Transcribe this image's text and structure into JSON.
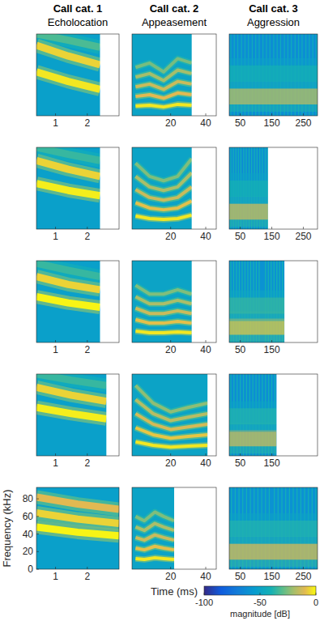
{
  "chart_data": [
    {
      "type": "spectrogram",
      "title": "Call cat. 1",
      "subtitle": "Echolocation",
      "xlim": [
        0.4,
        3.0
      ],
      "xticks": [
        1,
        2
      ],
      "ylim": [
        0,
        93
      ],
      "tick_labels": "x",
      "duration": 2.4,
      "background_db": -52,
      "series": [
        {
          "x": [
            0.4,
            1.4,
            2.4
          ],
          "values": [
            93,
            86,
            78
          ],
          "level_db": -32
        },
        {
          "x": [
            0.4,
            1.4,
            2.4
          ],
          "values": [
            80,
            68,
            58
          ],
          "level_db": -6
        },
        {
          "x": [
            0.4,
            1.4,
            2.4
          ],
          "values": [
            50,
            39,
            30
          ],
          "level_db": -3
        }
      ]
    },
    {
      "type": "spectrogram",
      "title": "Call cat. 2",
      "subtitle": "Appeasement",
      "xlim": [
        -2,
        46
      ],
      "xticks": [
        20,
        40
      ],
      "ylim": [
        0,
        93
      ],
      "tick_labels": "x",
      "duration": 32,
      "background_db": -50,
      "series": [
        {
          "x": [
            0,
            8,
            16,
            24,
            32
          ],
          "values": [
            11,
            12,
            10,
            13,
            12
          ],
          "level_db": -3
        },
        {
          "x": [
            0,
            8,
            16,
            24,
            32
          ],
          "values": [
            22,
            24,
            20,
            26,
            24
          ],
          "level_db": -10
        },
        {
          "x": [
            0,
            8,
            16,
            24,
            32
          ],
          "values": [
            33,
            36,
            30,
            39,
            36
          ],
          "level_db": -14
        },
        {
          "x": [
            0,
            8,
            16,
            24,
            32
          ],
          "values": [
            44,
            48,
            40,
            52,
            48
          ],
          "level_db": -20
        },
        {
          "x": [
            0,
            8,
            16,
            24,
            32
          ],
          "values": [
            55,
            60,
            50,
            65,
            60
          ],
          "level_db": -26
        }
      ]
    },
    {
      "type": "spectrogram",
      "title": "Call cat. 3",
      "subtitle": "Aggression",
      "xlim": [
        15,
        295
      ],
      "xticks": [
        50,
        150,
        250
      ],
      "ylim": [
        0,
        93
      ],
      "tick_labels": "x",
      "duration": 295,
      "background_db": -62,
      "pulse_db": -45,
      "pulses": [
        20,
        31,
        42,
        54,
        65,
        76,
        88,
        99,
        110,
        122,
        133,
        144,
        156,
        167,
        178,
        190,
        201,
        212,
        224,
        235,
        246,
        258,
        269,
        280,
        291
      ],
      "series": [
        {
          "x": [
            15,
            295
          ],
          "values": [
            22,
            22
          ],
          "level_db": -15
        },
        {
          "x": [
            15,
            295
          ],
          "values": [
            48,
            48
          ],
          "level_db": -40
        }
      ]
    },
    {
      "type": "spectrogram",
      "xlim": [
        0.4,
        3.0
      ],
      "xticks": [
        1,
        2
      ],
      "ylim": [
        0,
        93
      ],
      "tick_labels": "x",
      "duration": 2.4,
      "background_db": -52,
      "series": [
        {
          "x": [
            0.4,
            1.4,
            2.4
          ],
          "values": [
            93,
            85,
            78
          ],
          "level_db": -35
        },
        {
          "x": [
            0.4,
            1.4,
            2.4
          ],
          "values": [
            78,
            68,
            60
          ],
          "level_db": -6
        },
        {
          "x": [
            0.4,
            1.4,
            2.4
          ],
          "values": [
            52,
            44,
            38
          ],
          "level_db": -2
        }
      ]
    },
    {
      "type": "spectrogram",
      "xlim": [
        -2,
        46
      ],
      "xticks": [
        20,
        40
      ],
      "ylim": [
        0,
        93
      ],
      "tick_labels": "x",
      "duration": 32,
      "background_db": -50,
      "series": [
        {
          "x": [
            0,
            8,
            16,
            24,
            32
          ],
          "values": [
            15,
            12,
            11,
            12,
            16
          ],
          "level_db": -3
        },
        {
          "x": [
            0,
            8,
            16,
            24,
            32
          ],
          "values": [
            30,
            24,
            22,
            24,
            32
          ],
          "level_db": -9
        },
        {
          "x": [
            0,
            8,
            16,
            24,
            32
          ],
          "values": [
            45,
            36,
            33,
            36,
            48
          ],
          "level_db": -14
        },
        {
          "x": [
            0,
            8,
            16,
            24,
            32
          ],
          "values": [
            60,
            48,
            44,
            48,
            64
          ],
          "level_db": -19
        },
        {
          "x": [
            0,
            8,
            16,
            24,
            32
          ],
          "values": [
            75,
            60,
            55,
            60,
            80
          ],
          "level_db": -25
        }
      ]
    },
    {
      "type": "spectrogram",
      "xlim": [
        15,
        295
      ],
      "xticks": [
        50,
        150,
        250
      ],
      "ylim": [
        0,
        93
      ],
      "tick_labels": "x",
      "duration": 138,
      "background_db": -62,
      "pulse_db": -42,
      "pulses": [
        20,
        28,
        36,
        44,
        52,
        61,
        69,
        78,
        86,
        95,
        103,
        112,
        120,
        129,
        136
      ],
      "series": [
        {
          "x": [
            15,
            138
          ],
          "values": [
            20,
            20
          ],
          "level_db": -12
        },
        {
          "x": [
            15,
            138
          ],
          "values": [
            46,
            46
          ],
          "level_db": -40
        }
      ]
    },
    {
      "type": "spectrogram",
      "xlim": [
        0.4,
        3.0
      ],
      "xticks": [
        1,
        2
      ],
      "ylim": [
        0,
        93
      ],
      "tick_labels": "x",
      "duration": 2.4,
      "background_db": -52,
      "series": [
        {
          "x": [
            0.4,
            1.4,
            2.4
          ],
          "values": [
            90,
            82,
            75
          ],
          "level_db": -35
        },
        {
          "x": [
            0.4,
            1.4,
            2.4
          ],
          "values": [
            75,
            66,
            60
          ],
          "level_db": -6
        },
        {
          "x": [
            0.4,
            1.4,
            2.4
          ],
          "values": [
            52,
            45,
            40
          ],
          "level_db": -1
        }
      ]
    },
    {
      "type": "spectrogram",
      "xlim": [
        -2,
        46
      ],
      "xticks": [
        20,
        40
      ],
      "ylim": [
        0,
        93
      ],
      "tick_labels": "x",
      "duration": 32,
      "background_db": -50,
      "series": [
        {
          "x": [
            0,
            8,
            16,
            24,
            32
          ],
          "values": [
            13,
            11,
            11,
            12,
            11
          ],
          "level_db": -3
        },
        {
          "x": [
            0,
            8,
            16,
            24,
            32
          ],
          "values": [
            26,
            22,
            22,
            24,
            22
          ],
          "level_db": -9
        },
        {
          "x": [
            0,
            8,
            16,
            24,
            32
          ],
          "values": [
            39,
            33,
            33,
            36,
            33
          ],
          "level_db": -14
        },
        {
          "x": [
            0,
            8,
            16,
            24,
            32
          ],
          "values": [
            52,
            44,
            44,
            48,
            44
          ],
          "level_db": -19
        },
        {
          "x": [
            0,
            8,
            16,
            24,
            32
          ],
          "values": [
            65,
            55,
            55,
            60,
            55
          ],
          "level_db": -25
        }
      ]
    },
    {
      "type": "spectrogram",
      "xlim": [
        15,
        295
      ],
      "xticks": [
        50,
        150
      ],
      "ylim": [
        0,
        93
      ],
      "tick_labels": "x",
      "duration": 190,
      "background_db": -60,
      "pulse_db": -40,
      "pulses": [
        20,
        29,
        38,
        47,
        56,
        65,
        74,
        83,
        92,
        101,
        110,
        130,
        139,
        148,
        157,
        166,
        175,
        184
      ],
      "series": [
        {
          "x": [
            15,
            190
          ],
          "values": [
            18,
            18
          ],
          "level_db": -8
        },
        {
          "x": [
            15,
            190
          ],
          "values": [
            42,
            42
          ],
          "level_db": -35
        }
      ]
    },
    {
      "type": "spectrogram",
      "xlim": [
        0.4,
        3.0
      ],
      "xticks": [
        1,
        2
      ],
      "ylim": [
        0,
        93
      ],
      "tick_labels": "x",
      "duration": 2.6,
      "background_db": -52,
      "series": [
        {
          "x": [
            0.4,
            1.5,
            2.6
          ],
          "values": [
            93,
            86,
            80
          ],
          "level_db": -35
        },
        {
          "x": [
            0.4,
            1.5,
            2.6
          ],
          "values": [
            78,
            69,
            62
          ],
          "level_db": -6
        },
        {
          "x": [
            0.4,
            1.5,
            2.6
          ],
          "values": [
            55,
            48,
            42
          ],
          "level_db": -2
        }
      ]
    },
    {
      "type": "spectrogram",
      "xlim": [
        -2,
        46
      ],
      "xticks": [
        20,
        40
      ],
      "ylim": [
        0,
        93
      ],
      "tick_labels": "x",
      "duration": 41,
      "background_db": -50,
      "series": [
        {
          "x": [
            0,
            10,
            20,
            30,
            41
          ],
          "values": [
            16,
            12,
            10,
            11,
            12
          ],
          "level_db": -3
        },
        {
          "x": [
            0,
            10,
            20,
            30,
            41
          ],
          "values": [
            32,
            24,
            20,
            22,
            24
          ],
          "level_db": -8
        },
        {
          "x": [
            0,
            10,
            20,
            30,
            41
          ],
          "values": [
            48,
            36,
            30,
            33,
            36
          ],
          "level_db": -12
        },
        {
          "x": [
            0,
            10,
            20,
            30,
            41
          ],
          "values": [
            64,
            48,
            40,
            44,
            48
          ],
          "level_db": -17
        },
        {
          "x": [
            0,
            10,
            20,
            30,
            41
          ],
          "values": [
            80,
            60,
            50,
            55,
            60
          ],
          "level_db": -23
        }
      ]
    },
    {
      "type": "spectrogram",
      "xlim": [
        15,
        295
      ],
      "xticks": [
        50,
        150
      ],
      "ylim": [
        0,
        93
      ],
      "tick_labels": "x",
      "duration": 165,
      "background_db": -62,
      "pulse_db": -42,
      "pulses": [
        20,
        30,
        40,
        50,
        60,
        70,
        80,
        90,
        100,
        110,
        120,
        130,
        140,
        150,
        160
      ],
      "series": [
        {
          "x": [
            15,
            165
          ],
          "values": [
            20,
            20
          ],
          "level_db": -12
        },
        {
          "x": [
            15,
            165
          ],
          "values": [
            45,
            45
          ],
          "level_db": -38
        }
      ]
    },
    {
      "type": "spectrogram",
      "xlim": [
        0.4,
        3.0
      ],
      "xticks": [
        1,
        2
      ],
      "ylim": [
        0,
        93
      ],
      "yticks": [
        0,
        20,
        40,
        60,
        80
      ],
      "ylabel": "Frequency (kHz)",
      "tick_labels": true,
      "duration": 3.0,
      "background_db": -52,
      "series": [
        {
          "x": [
            0.4,
            1.7,
            3.0
          ],
          "values": [
            82,
            74,
            68
          ],
          "level_db": -10
        },
        {
          "x": [
            0.4,
            1.7,
            3.0
          ],
          "values": [
            64,
            57,
            52
          ],
          "level_db": -6
        },
        {
          "x": [
            0.4,
            1.7,
            3.0
          ],
          "values": [
            48,
            42,
            38
          ],
          "level_db": -1
        }
      ]
    },
    {
      "type": "spectrogram",
      "xlim": [
        -2,
        46
      ],
      "xticks": [
        20,
        40
      ],
      "ylim": [
        0,
        93
      ],
      "xlabel": "Time (ms)",
      "tick_labels": "x",
      "duration": 22,
      "background_db": -50,
      "series": [
        {
          "x": [
            0,
            5,
            11,
            16,
            22
          ],
          "values": [
            12,
            11,
            13,
            12,
            11
          ],
          "level_db": -3
        },
        {
          "x": [
            0,
            5,
            11,
            16,
            22
          ],
          "values": [
            24,
            22,
            26,
            24,
            22
          ],
          "level_db": -9
        },
        {
          "x": [
            0,
            5,
            11,
            16,
            22
          ],
          "values": [
            36,
            33,
            39,
            36,
            33
          ],
          "level_db": -14
        },
        {
          "x": [
            0,
            5,
            11,
            16,
            22
          ],
          "values": [
            48,
            44,
            52,
            48,
            44
          ],
          "level_db": -19
        },
        {
          "x": [
            0,
            5,
            11,
            16,
            22
          ],
          "values": [
            60,
            55,
            65,
            60,
            55
          ],
          "level_db": -25
        }
      ]
    },
    {
      "type": "spectrogram",
      "xlim": [
        15,
        295
      ],
      "xticks": [
        50,
        150,
        250
      ],
      "ylim": [
        0,
        93
      ],
      "tick_labels": "x",
      "duration": 295,
      "background_db": -60,
      "pulse_db": -42,
      "pulses": [
        22,
        34,
        46,
        58,
        70,
        82,
        94,
        106,
        118,
        130,
        142,
        158,
        170,
        182,
        194,
        206,
        218,
        230,
        242,
        254,
        266,
        278,
        290
      ],
      "series": [
        {
          "x": [
            15,
            295
          ],
          "values": [
            20,
            20
          ],
          "level_db": -10
        },
        {
          "x": [
            15,
            295
          ],
          "values": [
            46,
            46
          ],
          "level_db": -38
        }
      ],
      "colorbar": {
        "range": [
          -100,
          0
        ],
        "ticks": [
          -100,
          -50,
          0
        ],
        "label": "magnitude [dB]"
      }
    }
  ]
}
